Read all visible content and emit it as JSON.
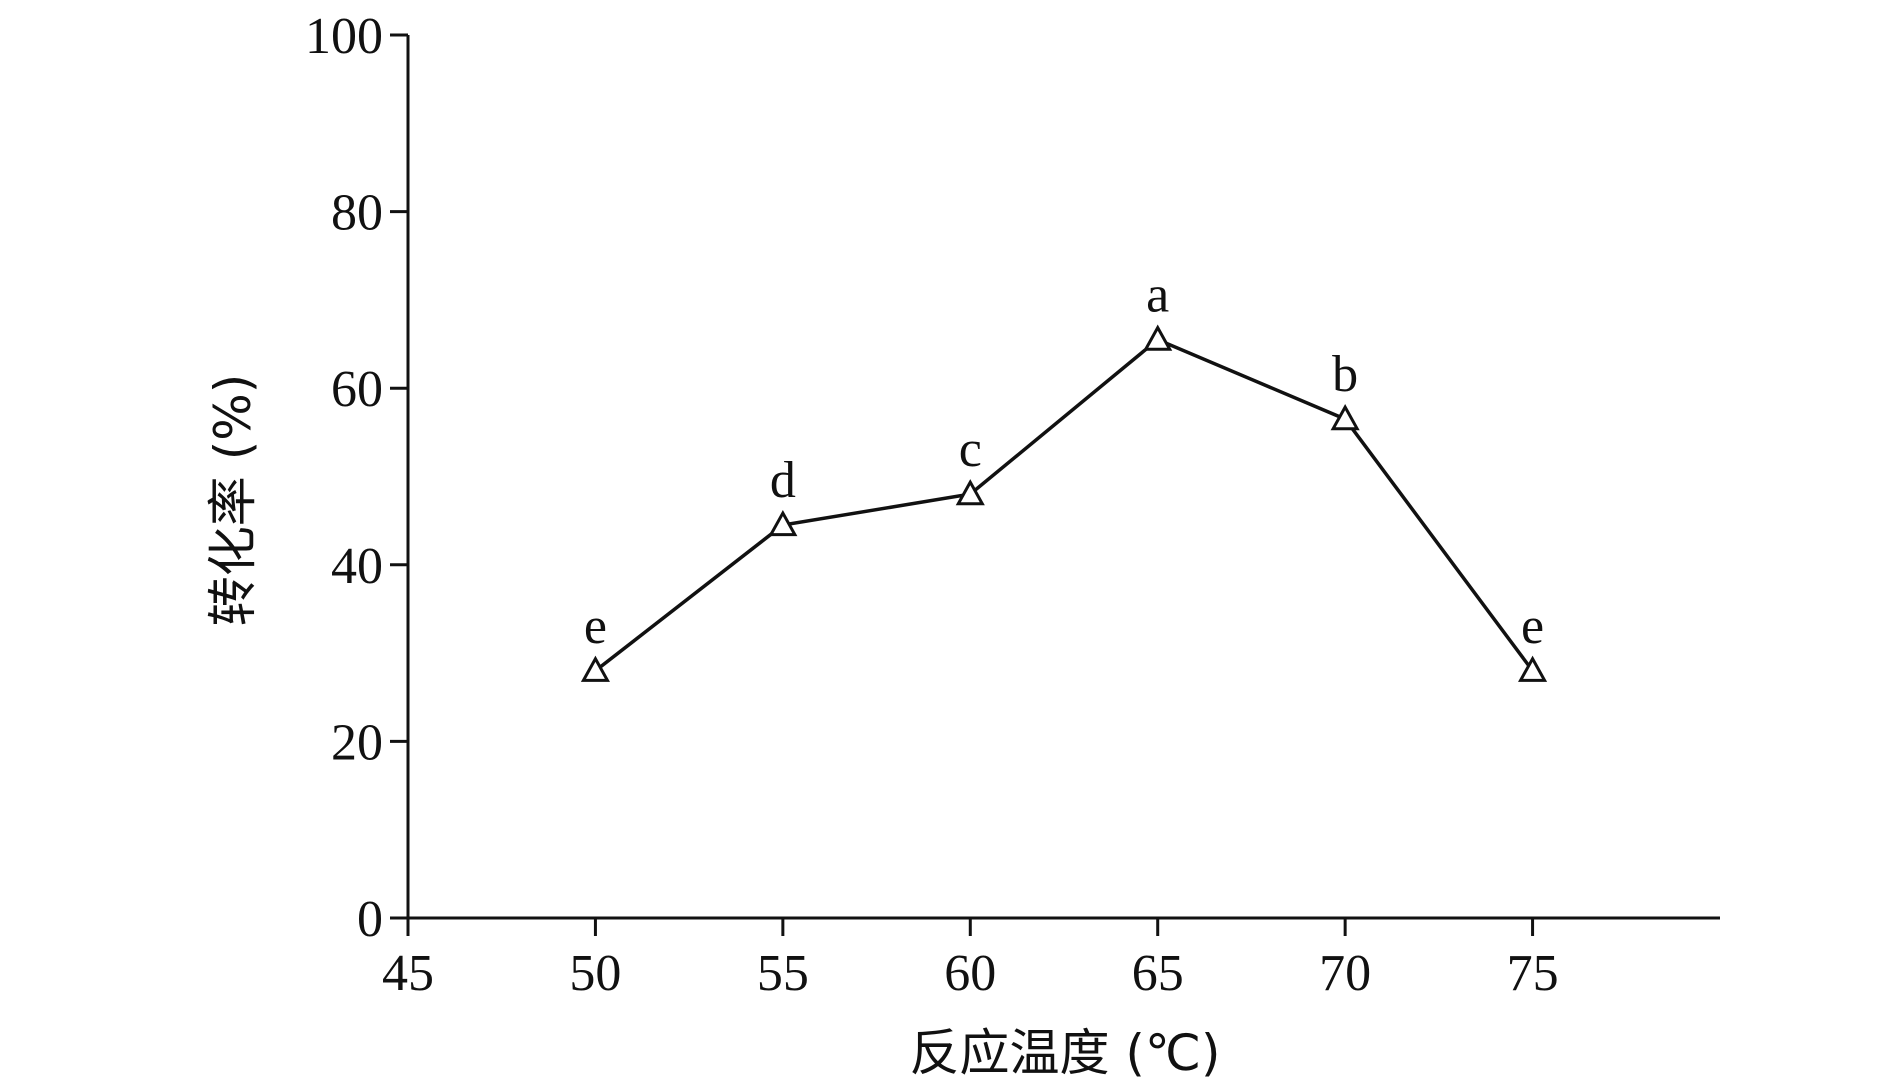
{
  "chart_data": {
    "type": "line",
    "title": "",
    "xlabel": "反应温度 (℃)",
    "ylabel": "转化率 (%)",
    "xlim": [
      45,
      80
    ],
    "ylim": [
      0,
      100
    ],
    "xticks": [
      45,
      50,
      55,
      60,
      65,
      70,
      75
    ],
    "yticks": [
      0,
      20,
      40,
      60,
      80,
      100
    ],
    "grid": false,
    "legend": "none",
    "series": [
      {
        "marker": "triangle-open",
        "color": "#111111",
        "x": [
          50,
          55,
          60,
          65,
          70,
          75
        ],
        "y": [
          28.0,
          44.5,
          48.0,
          65.5,
          56.5,
          28.0
        ],
        "labels": [
          "e",
          "d",
          "c",
          "a",
          "b",
          "e"
        ]
      }
    ]
  }
}
